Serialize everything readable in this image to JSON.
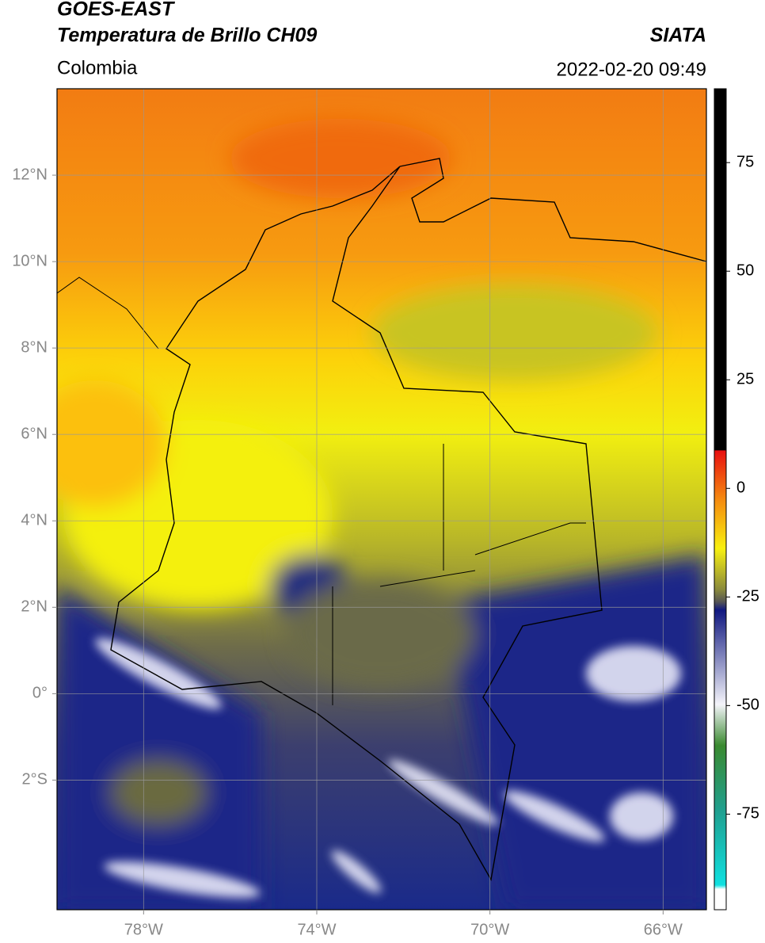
{
  "header": {
    "title": "GOES-EAST",
    "subtitle": "Temperatura de Brillo CH09",
    "source": "SIATA",
    "region": "Colombia",
    "datetime": "2022-02-20 09:49"
  },
  "map": {
    "xlim": [
      -80,
      -65
    ],
    "ylim": [
      -5,
      14
    ],
    "xticks": [
      {
        "value": -78,
        "label": "78°W"
      },
      {
        "value": -74,
        "label": "74°W"
      },
      {
        "value": -70,
        "label": "70°W"
      },
      {
        "value": -66,
        "label": "66°W"
      }
    ],
    "yticks": [
      {
        "value": 12,
        "label": "12°N"
      },
      {
        "value": 10,
        "label": "10°N"
      },
      {
        "value": 8,
        "label": "8°N"
      },
      {
        "value": 6,
        "label": "6°N"
      },
      {
        "value": 4,
        "label": "4°N"
      },
      {
        "value": 2,
        "label": "2°N"
      },
      {
        "value": 0,
        "label": "0°"
      },
      {
        "value": -2,
        "label": "2°S"
      }
    ],
    "grid": true
  },
  "colorbar": {
    "lim": [
      -97,
      92
    ],
    "ticks": [
      75,
      50,
      25,
      0,
      -25,
      -50,
      -75
    ]
  }
}
